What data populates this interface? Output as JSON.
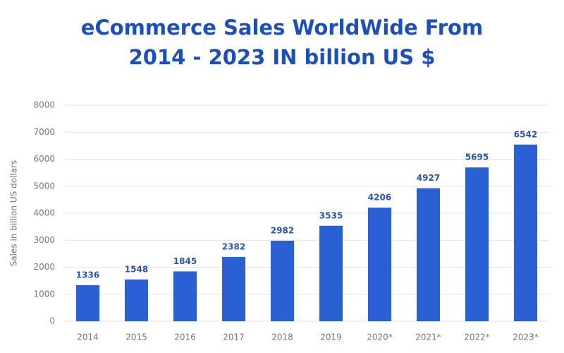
{
  "chart_data": {
    "type": "bar",
    "title": "eCommerce Sales WorldWide From 2014 - 2023 IN billion US $",
    "y_label": "Sales in billion US dollars",
    "categories": [
      "2014",
      "2015",
      "2016",
      "2017",
      "2018",
      "2019",
      "2020*",
      "2021*",
      "2022*",
      "2023*"
    ],
    "values": [
      1336,
      1548,
      1845,
      2382,
      2982,
      3535,
      4206,
      4927,
      5695,
      6542
    ],
    "color": "#2b5fd4",
    "ylim": [
      0,
      8000
    ],
    "yticks": [
      0,
      1000,
      2000,
      3000,
      4000,
      5000,
      6000,
      7000,
      8000
    ],
    "grid": true
  }
}
